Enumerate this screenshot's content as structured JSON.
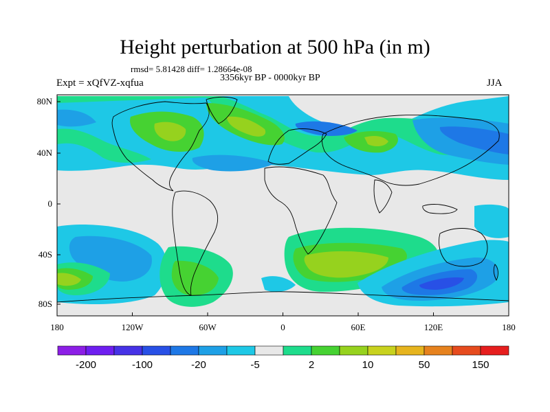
{
  "title": "Height perturbation at 500 hPa (in m)",
  "stats": "rmsd= 5.81428 diff= 1.28664e-08",
  "period": "3356kyr BP - 0000kyr BP",
  "expt": "Expt = xQfVZ-xqfua",
  "season": "JJA",
  "axes": {
    "lon_ticks": [
      "180",
      "120W",
      "60W",
      "0",
      "60E",
      "120E",
      "180"
    ],
    "lat_ticks": [
      "80N",
      "40N",
      "0",
      "40S",
      "80S"
    ]
  },
  "colorbar": {
    "colors": [
      "#8c1ee6",
      "#6e1ef0",
      "#4632e6",
      "#2850e6",
      "#1e78e6",
      "#1ea0e6",
      "#1ec8e6",
      "#e8e8e8",
      "#1edc8c",
      "#46d232",
      "#96d21e",
      "#c8d21e",
      "#e6b41e",
      "#e6821e",
      "#e64b1e",
      "#e61e1e"
    ],
    "labels": [
      "-200",
      "-100",
      "-20",
      "-5",
      "2",
      "10",
      "50",
      "150"
    ]
  }
}
